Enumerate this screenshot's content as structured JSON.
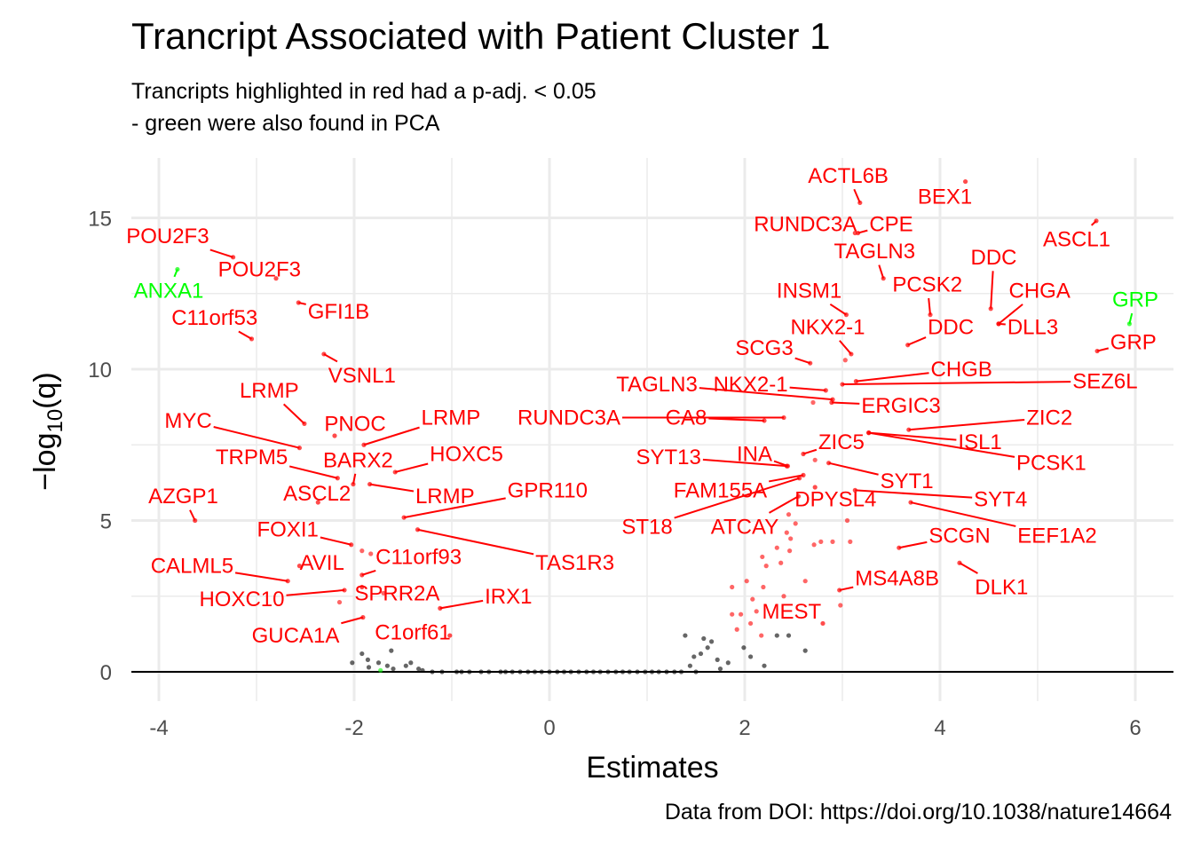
{
  "title": "Trancript Associated with Patient Cluster 1",
  "subtitle_line1": "Trancripts highlighted in red had a p-adj. < 0.05",
  "subtitle_line2": "- green were also found in PCA",
  "caption": "Data from DOI: https://doi.org/10.1038/nature14664",
  "colors": {
    "significant": "#ff0000",
    "pca": "#00ff00",
    "other": "#000000",
    "grid": "#ebebeb"
  },
  "chart_data": {
    "type": "scatter",
    "title": "Trancript Associated with Patient Cluster 1",
    "subtitle": "Trancripts highlighted in red had a p-adj. < 0.05\n- green were also found in PCA",
    "xlabel": "Estimates",
    "ylabel": "-log10(q)",
    "xlim": [
      -4.2,
      6.4
    ],
    "ylim": [
      -0.8,
      17
    ],
    "x_ticks": [
      -4,
      -2,
      0,
      2,
      4,
      6
    ],
    "y_ticks": [
      0,
      5,
      10,
      15
    ],
    "grid": true,
    "hline": 0,
    "labeled_points": [
      {
        "gene": "ACTL6B",
        "x": 3.18,
        "y": 15.5,
        "color": "red",
        "lx": 3.06,
        "ly": 16.4
      },
      {
        "gene": "BEX1",
        "x": 4.26,
        "y": 16.2,
        "color": "red",
        "lx": 4.05,
        "ly": 15.7
      },
      {
        "gene": "RUNDC3A",
        "x": 3.13,
        "y": 14.5,
        "color": "red",
        "lx": 2.62,
        "ly": 14.8
      },
      {
        "gene": "CPE",
        "x": 3.16,
        "y": 14.5,
        "color": "red",
        "lx": 3.5,
        "ly": 14.8
      },
      {
        "gene": "ASCL1",
        "x": 5.6,
        "y": 14.9,
        "color": "red",
        "lx": 5.4,
        "ly": 14.3
      },
      {
        "gene": "TAGLN3",
        "x": 3.42,
        "y": 13.0,
        "color": "red",
        "lx": 3.33,
        "ly": 13.9
      },
      {
        "gene": "DDC",
        "x": 4.52,
        "y": 12.0,
        "color": "red",
        "lx": 4.55,
        "ly": 13.7
      },
      {
        "gene": "PCSK2",
        "x": 3.9,
        "y": 11.8,
        "color": "red",
        "lx": 3.87,
        "ly": 12.8
      },
      {
        "gene": "INSM1",
        "x": 3.04,
        "y": 11.8,
        "color": "red",
        "lx": 2.66,
        "ly": 12.6
      },
      {
        "gene": "CHGA",
        "x": 4.6,
        "y": 11.5,
        "color": "red",
        "lx": 5.02,
        "ly": 12.6
      },
      {
        "gene": "GRP",
        "x": 5.94,
        "y": 11.5,
        "color": "green",
        "lx": 6.0,
        "ly": 12.3
      },
      {
        "gene": "NKX2-1",
        "x": 3.09,
        "y": 10.5,
        "color": "red",
        "lx": 2.85,
        "ly": 11.4
      },
      {
        "gene": "DDC",
        "x": 3.67,
        "y": 10.8,
        "color": "red",
        "lx": 4.11,
        "ly": 11.4
      },
      {
        "gene": "DLL3",
        "x": 4.6,
        "y": 11.5,
        "color": "red",
        "lx": 4.95,
        "ly": 11.4
      },
      {
        "gene": "GRP",
        "x": 5.61,
        "y": 10.6,
        "color": "red",
        "lx": 5.98,
        "ly": 10.9
      },
      {
        "gene": "SCG3",
        "x": 2.67,
        "y": 10.2,
        "color": "red",
        "lx": 2.2,
        "ly": 10.7
      },
      {
        "gene": "CHGB",
        "x": 3.14,
        "y": 9.6,
        "color": "red",
        "lx": 4.22,
        "ly": 10.0
      },
      {
        "gene": "SEZ6L",
        "x": 3.0,
        "y": 9.5,
        "color": "red",
        "lx": 5.69,
        "ly": 9.6
      },
      {
        "gene": "TAGLN3",
        "x": 2.9,
        "y": 9.0,
        "color": "red",
        "lx": 1.1,
        "ly": 9.5
      },
      {
        "gene": "NKX2-1",
        "x": 2.83,
        "y": 9.3,
        "color": "red",
        "lx": 2.06,
        "ly": 9.5
      },
      {
        "gene": "ERGIC3",
        "x": 2.89,
        "y": 8.9,
        "color": "red",
        "lx": 3.6,
        "ly": 8.8
      },
      {
        "gene": "RUNDC3A",
        "x": 2.4,
        "y": 8.4,
        "color": "red",
        "lx": 0.2,
        "ly": 8.4
      },
      {
        "gene": "CA8",
        "x": 2.2,
        "y": 8.3,
        "color": "red",
        "lx": 1.4,
        "ly": 8.4
      },
      {
        "gene": "ZIC2",
        "x": 3.68,
        "y": 8.0,
        "color": "red",
        "lx": 5.12,
        "ly": 8.4
      },
      {
        "gene": "ISL1",
        "x": 3.27,
        "y": 7.9,
        "color": "red",
        "lx": 4.41,
        "ly": 7.6
      },
      {
        "gene": "ZIC5",
        "x": 2.6,
        "y": 7.2,
        "color": "red",
        "lx": 2.99,
        "ly": 7.6
      },
      {
        "gene": "PCSK1",
        "x": 3.27,
        "y": 7.9,
        "color": "red",
        "lx": 5.14,
        "ly": 6.9
      },
      {
        "gene": "INA",
        "x": 2.44,
        "y": 6.8,
        "color": "red",
        "lx": 2.1,
        "ly": 7.2
      },
      {
        "gene": "SYT13",
        "x": 2.43,
        "y": 6.8,
        "color": "red",
        "lx": 1.22,
        "ly": 7.1
      },
      {
        "gene": "SYT1",
        "x": 2.86,
        "y": 6.9,
        "color": "red",
        "lx": 3.66,
        "ly": 6.3
      },
      {
        "gene": "FAM155A",
        "x": 2.6,
        "y": 6.5,
        "color": "red",
        "lx": 1.75,
        "ly": 6.0
      },
      {
        "gene": "DPYSL4",
        "x": 2.72,
        "y": 6.1,
        "color": "red",
        "lx": 2.93,
        "ly": 5.7
      },
      {
        "gene": "SYT4",
        "x": 3.13,
        "y": 6.0,
        "color": "red",
        "lx": 4.62,
        "ly": 5.7
      },
      {
        "gene": "ST18",
        "x": 2.56,
        "y": 6.4,
        "color": "red",
        "lx": 1.0,
        "ly": 4.8
      },
      {
        "gene": "ATCAY",
        "x": 2.55,
        "y": 5.8,
        "color": "red",
        "lx": 2.0,
        "ly": 4.8
      },
      {
        "gene": "SCGN",
        "x": 3.58,
        "y": 4.1,
        "color": "red",
        "lx": 4.2,
        "ly": 4.5
      },
      {
        "gene": "EEF1A2",
        "x": 3.7,
        "y": 5.6,
        "color": "red",
        "lx": 5.2,
        "ly": 4.5
      },
      {
        "gene": "MS4A8B",
        "x": 2.97,
        "y": 2.7,
        "color": "red",
        "lx": 3.56,
        "ly": 3.1
      },
      {
        "gene": "DLK1",
        "x": 4.2,
        "y": 3.6,
        "color": "red",
        "lx": 4.63,
        "ly": 2.8
      },
      {
        "gene": "MEST",
        "x": 2.8,
        "y": 1.6,
        "color": "red",
        "lx": 2.48,
        "ly": 2.0
      },
      {
        "gene": "POU2F3",
        "x": -3.24,
        "y": 13.7,
        "color": "red",
        "lx": -3.91,
        "ly": 14.4
      },
      {
        "gene": "ANXA1",
        "x": -3.81,
        "y": 13.3,
        "color": "green",
        "lx": -3.9,
        "ly": 12.6
      },
      {
        "gene": "POU2F3",
        "x": -2.8,
        "y": 13.0,
        "color": "red",
        "lx": -2.97,
        "ly": 13.3
      },
      {
        "gene": "C11orf53",
        "x": -3.05,
        "y": 11.0,
        "color": "red",
        "lx": -3.43,
        "ly": 11.7
      },
      {
        "gene": "GFI1B",
        "x": -2.57,
        "y": 12.2,
        "color": "red",
        "lx": -2.16,
        "ly": 11.9
      },
      {
        "gene": "VSNL1",
        "x": -2.31,
        "y": 10.5,
        "color": "red",
        "lx": -1.92,
        "ly": 9.8
      },
      {
        "gene": "LRMP",
        "x": -2.51,
        "y": 8.2,
        "color": "red",
        "lx": -2.87,
        "ly": 9.3
      },
      {
        "gene": "MYC",
        "x": -2.56,
        "y": 7.4,
        "color": "red",
        "lx": -3.7,
        "ly": 8.3
      },
      {
        "gene": "PNOC",
        "x": -2.2,
        "y": 7.8,
        "color": "red",
        "lx": -1.99,
        "ly": 8.2
      },
      {
        "gene": "LRMP",
        "x": -1.9,
        "y": 7.5,
        "color": "red",
        "lx": -1.01,
        "ly": 8.4
      },
      {
        "gene": "TRPM5",
        "x": -2.17,
        "y": 6.4,
        "color": "red",
        "lx": -3.05,
        "ly": 7.1
      },
      {
        "gene": "BARX2",
        "x": -2.01,
        "y": 6.2,
        "color": "red",
        "lx": -1.96,
        "ly": 7.0
      },
      {
        "gene": "HOXC5",
        "x": -1.58,
        "y": 6.6,
        "color": "red",
        "lx": -0.85,
        "ly": 7.2
      },
      {
        "gene": "ASCL2",
        "x": -2.37,
        "y": 5.6,
        "color": "red",
        "lx": -2.38,
        "ly": 5.9
      },
      {
        "gene": "LRMP",
        "x": -1.84,
        "y": 6.2,
        "color": "red",
        "lx": -1.07,
        "ly": 5.8
      },
      {
        "gene": "GPR110",
        "x": -1.49,
        "y": 5.1,
        "color": "red",
        "lx": -0.02,
        "ly": 6.0
      },
      {
        "gene": "AZGP1",
        "x": -3.63,
        "y": 5.0,
        "color": "red",
        "lx": -3.75,
        "ly": 5.8
      },
      {
        "gene": "FOXI1",
        "x": -2.03,
        "y": 4.2,
        "color": "red",
        "lx": -2.68,
        "ly": 4.7
      },
      {
        "gene": "TAS1R3",
        "x": -1.35,
        "y": 4.7,
        "color": "red",
        "lx": 0.26,
        "ly": 3.6
      },
      {
        "gene": "C11orf93",
        "x": -1.92,
        "y": 3.2,
        "color": "red",
        "lx": -1.34,
        "ly": 3.8
      },
      {
        "gene": "CALML5",
        "x": -2.68,
        "y": 3.0,
        "color": "red",
        "lx": -3.66,
        "ly": 3.5
      },
      {
        "gene": "AVIL",
        "x": -2.56,
        "y": 3.5,
        "color": "red",
        "lx": -2.33,
        "ly": 3.6
      },
      {
        "gene": "HOXC10",
        "x": -2.1,
        "y": 2.7,
        "color": "red",
        "lx": -3.15,
        "ly": 2.4
      },
      {
        "gene": "SPRR2A",
        "x": -1.92,
        "y": 2.8,
        "color": "red",
        "lx": -1.56,
        "ly": 2.6
      },
      {
        "gene": "IRX1",
        "x": -1.12,
        "y": 2.1,
        "color": "red",
        "lx": -0.42,
        "ly": 2.5
      },
      {
        "gene": "GUCA1A",
        "x": -1.91,
        "y": 1.8,
        "color": "red",
        "lx": -2.6,
        "ly": 1.2
      },
      {
        "gene": "C1orf61",
        "x": -1.02,
        "y": 1.2,
        "color": "red",
        "lx": -1.4,
        "ly": 1.3
      }
    ],
    "unlabeled_points": [
      {
        "x": 3.05,
        "y": 5.0,
        "color": "red"
      },
      {
        "x": 3.08,
        "y": 4.3,
        "color": "red"
      },
      {
        "x": 2.78,
        "y": 4.3,
        "color": "red"
      },
      {
        "x": 2.71,
        "y": 4.2,
        "color": "red"
      },
      {
        "x": 2.47,
        "y": 4.4,
        "color": "red"
      },
      {
        "x": 2.46,
        "y": 4.0,
        "color": "red"
      },
      {
        "x": 2.37,
        "y": 3.6,
        "color": "red"
      },
      {
        "x": 2.33,
        "y": 4.1,
        "color": "red"
      },
      {
        "x": 2.22,
        "y": 3.5,
        "color": "red"
      },
      {
        "x": 2.18,
        "y": 3.8,
        "color": "red"
      },
      {
        "x": 2.02,
        "y": 3.0,
        "color": "red"
      },
      {
        "x": 2.08,
        "y": 2.4,
        "color": "red"
      },
      {
        "x": 2.19,
        "y": 2.8,
        "color": "red"
      },
      {
        "x": 2.12,
        "y": 2.0,
        "color": "red"
      },
      {
        "x": 1.96,
        "y": 1.9,
        "color": "red"
      },
      {
        "x": 1.87,
        "y": 1.9,
        "color": "red"
      },
      {
        "x": 1.92,
        "y": 1.4,
        "color": "red"
      },
      {
        "x": 2.06,
        "y": 1.6,
        "color": "red"
      },
      {
        "x": 2.17,
        "y": 1.2,
        "color": "red"
      },
      {
        "x": 2.4,
        "y": 2.5,
        "color": "red"
      },
      {
        "x": 2.52,
        "y": 4.9,
        "color": "red"
      },
      {
        "x": 2.45,
        "y": 5.2,
        "color": "red"
      },
      {
        "x": 1.87,
        "y": 2.8,
        "color": "red"
      },
      {
        "x": 2.98,
        "y": 2.2,
        "color": "red"
      },
      {
        "x": 2.62,
        "y": 3.0,
        "color": "red"
      },
      {
        "x": 2.9,
        "y": 4.3,
        "color": "red"
      },
      {
        "x": 2.43,
        "y": 4.6,
        "color": "red"
      },
      {
        "x": 2.72,
        "y": 7.0,
        "color": "red"
      },
      {
        "x": 2.7,
        "y": 8.9,
        "color": "red"
      },
      {
        "x": 3.03,
        "y": 10.3,
        "color": "red"
      },
      {
        "x": -1.92,
        "y": 4.0,
        "color": "red"
      },
      {
        "x": -1.83,
        "y": 3.9,
        "color": "red"
      },
      {
        "x": -2.15,
        "y": 2.3,
        "color": "red"
      },
      {
        "x": -1.7,
        "y": 2.6,
        "color": "red"
      },
      {
        "x": 1.39,
        "y": 1.2,
        "color": "black"
      },
      {
        "x": 1.58,
        "y": 1.1,
        "color": "black"
      },
      {
        "x": 1.66,
        "y": 1.0,
        "color": "black"
      },
      {
        "x": 1.62,
        "y": 0.8,
        "color": "black"
      },
      {
        "x": 1.55,
        "y": 0.6,
        "color": "black"
      },
      {
        "x": 1.48,
        "y": 0.5,
        "color": "black"
      },
      {
        "x": 1.72,
        "y": 0.4,
        "color": "black"
      },
      {
        "x": 1.83,
        "y": 0.3,
        "color": "black"
      },
      {
        "x": 1.44,
        "y": 0.2,
        "color": "black"
      },
      {
        "x": 1.99,
        "y": 0.8,
        "color": "black"
      },
      {
        "x": 2.06,
        "y": 0.5,
        "color": "black"
      },
      {
        "x": 2.2,
        "y": 0.2,
        "color": "black"
      },
      {
        "x": 2.33,
        "y": 1.2,
        "color": "black"
      },
      {
        "x": 2.45,
        "y": 1.2,
        "color": "black"
      },
      {
        "x": 2.62,
        "y": 0.7,
        "color": "black"
      },
      {
        "x": 1.75,
        "y": 0.1,
        "color": "black"
      },
      {
        "x": -2.02,
        "y": 0.3,
        "color": "black"
      },
      {
        "x": -1.92,
        "y": 0.6,
        "color": "black"
      },
      {
        "x": -1.86,
        "y": 0.4,
        "color": "black"
      },
      {
        "x": -1.75,
        "y": 0.3,
        "color": "black"
      },
      {
        "x": -1.66,
        "y": 0.2,
        "color": "black"
      },
      {
        "x": -1.6,
        "y": 0.1,
        "color": "black"
      },
      {
        "x": -1.47,
        "y": 0.2,
        "color": "black"
      },
      {
        "x": -1.42,
        "y": 0.3,
        "color": "black"
      },
      {
        "x": -1.34,
        "y": 0.1,
        "color": "black"
      },
      {
        "x": -1.62,
        "y": 0.7,
        "color": "black"
      },
      {
        "x": -1.85,
        "y": 0.15,
        "color": "black"
      },
      {
        "x": -1.3,
        "y": 0.05,
        "color": "black"
      },
      {
        "x": -1.73,
        "y": 0.05,
        "color": "green"
      }
    ],
    "near_zero_points_x": [
      -1.2,
      -1.1,
      -0.95,
      -0.9,
      -0.82,
      -0.7,
      -0.62,
      -0.5,
      -0.45,
      -0.38,
      -0.3,
      -0.22,
      -0.15,
      -0.08,
      0.0,
      0.08,
      0.15,
      0.22,
      0.3,
      0.38,
      0.45,
      0.52,
      0.6,
      0.68,
      0.75,
      0.82,
      0.9,
      0.98,
      1.05,
      1.12,
      1.2,
      1.28,
      1.35,
      1.5
    ]
  }
}
